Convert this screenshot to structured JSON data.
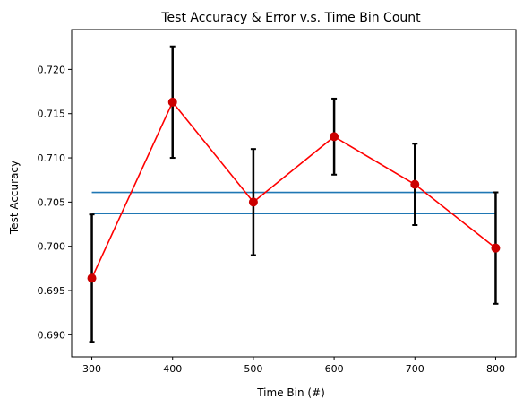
{
  "chart_data": {
    "type": "line",
    "title": "Test Accuracy & Error v.s. Time Bin Count",
    "xlabel": "Time Bin (#)",
    "ylabel": "Test Accuracy",
    "xlim": [
      275,
      825
    ],
    "ylim": [
      0.6875,
      0.7245
    ],
    "xticks": [
      300,
      400,
      500,
      600,
      700,
      800
    ],
    "yticks": [
      0.69,
      0.695,
      0.7,
      0.705,
      0.71,
      0.715,
      0.72
    ],
    "ytick_labels": [
      "0.690",
      "0.695",
      "0.700",
      "0.705",
      "0.710",
      "0.715",
      "0.720"
    ],
    "grid": false,
    "series": [
      {
        "type": "errorbar-line",
        "color": "#ff0000",
        "marker_color": "#cc0000",
        "errorbar_color": "#000000",
        "x": [
          300,
          400,
          500,
          600,
          700,
          800
        ],
        "y": [
          0.6964,
          0.7163,
          0.705,
          0.7124,
          0.707,
          0.6998
        ],
        "yerr": [
          0.0072,
          0.0063,
          0.006,
          0.0043,
          0.0046,
          0.0063
        ]
      }
    ],
    "hlines": [
      {
        "y": 0.7061,
        "xmin": 300,
        "xmax": 800,
        "color": "#1f77b4"
      },
      {
        "y": 0.7037,
        "xmin": 300,
        "xmax": 800,
        "color": "#1f77b4"
      }
    ]
  }
}
